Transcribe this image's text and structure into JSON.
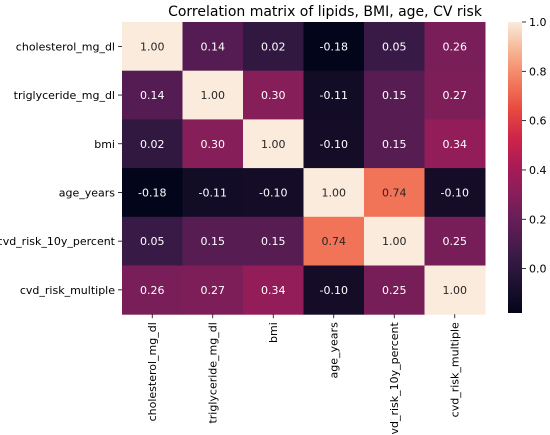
{
  "chart_data": {
    "type": "heatmap",
    "title": "Correlation matrix of lipids, BMI, age, CV risk",
    "row_labels": [
      "cholesterol_mg_dl",
      "triglyceride_mg_dl",
      "bmi",
      "age_years",
      "cvd_risk_10y_percent",
      "cvd_risk_multiple"
    ],
    "col_labels": [
      "cholesterol_mg_dl",
      "triglyceride_mg_dl",
      "bmi",
      "age_years",
      "cvd_risk_10y_percent",
      "cvd_risk_multiple"
    ],
    "values": [
      [
        1.0,
        0.14,
        0.02,
        -0.18,
        0.05,
        0.26
      ],
      [
        0.14,
        1.0,
        0.3,
        -0.11,
        0.15,
        0.27
      ],
      [
        0.02,
        0.3,
        1.0,
        -0.1,
        0.15,
        0.34
      ],
      [
        -0.18,
        -0.11,
        -0.1,
        1.0,
        0.74,
        -0.1
      ],
      [
        0.05,
        0.15,
        0.15,
        0.74,
        1.0,
        0.25
      ],
      [
        0.26,
        0.27,
        0.34,
        -0.1,
        0.25,
        1.0
      ]
    ],
    "value_format": "0.00",
    "colormap": "rocket",
    "vmin": -0.18,
    "vmax": 1.0,
    "colorbar": {
      "ticks": [
        0.0,
        0.2,
        0.4,
        0.6,
        0.8,
        1.0
      ],
      "tick_labels": [
        "0.0",
        "0.2",
        "0.4",
        "0.6",
        "0.8",
        "1.0"
      ],
      "placement": "right"
    }
  }
}
